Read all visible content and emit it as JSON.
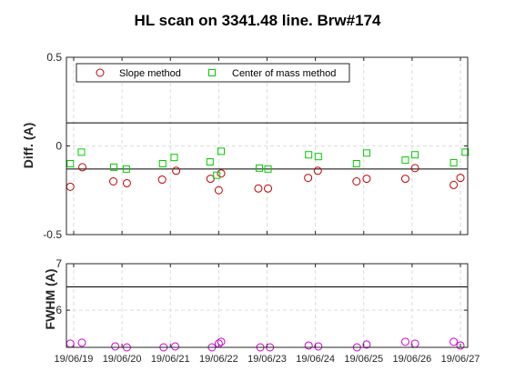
{
  "chart_data": [
    {
      "type": "scatter",
      "title": "HL scan on 3341.48 line. Brw#174",
      "ylabel": "Diff.  (A)",
      "ylim": [
        -0.5,
        0.5
      ],
      "yticks": [
        "-0.5",
        "0",
        "0.5"
      ],
      "xlim": [
        -0.15,
        8.15
      ],
      "xticks": [
        "19/06/19",
        "19/06/20",
        "19/06/21",
        "19/06/22",
        "19/06/23",
        "19/06/24",
        "19/06/25",
        "19/06/26",
        "19/06/27"
      ],
      "grid": true,
      "legend_position": "top",
      "reference_lines": [
        0.13,
        -0.13
      ],
      "series": [
        {
          "name": "Slope method",
          "marker": "circle",
          "color": "#c00000",
          "x": [
            -0.07,
            0.18,
            0.82,
            1.1,
            1.83,
            2.12,
            2.83,
            3.0,
            3.05,
            3.82,
            4.02,
            4.85,
            5.05,
            5.85,
            6.06,
            6.86,
            7.06,
            7.86,
            8.0
          ],
          "y": [
            -0.23,
            -0.12,
            -0.2,
            -0.21,
            -0.19,
            -0.14,
            -0.185,
            -0.25,
            -0.155,
            -0.24,
            -0.24,
            -0.18,
            -0.14,
            -0.2,
            -0.185,
            -0.185,
            -0.125,
            -0.22,
            -0.18
          ]
        },
        {
          "name": "Center of mass method",
          "marker": "square",
          "color": "#00cc00",
          "x": [
            -0.07,
            0.16,
            0.83,
            1.09,
            1.84,
            2.08,
            2.82,
            2.96,
            3.05,
            3.84,
            4.02,
            4.86,
            5.06,
            5.85,
            6.06,
            6.86,
            7.06,
            7.86,
            8.1
          ],
          "y": [
            -0.1,
            -0.035,
            -0.12,
            -0.13,
            -0.1,
            -0.065,
            -0.09,
            -0.165,
            -0.03,
            -0.125,
            -0.13,
            -0.05,
            -0.06,
            -0.1,
            -0.04,
            -0.08,
            -0.05,
            -0.095,
            -0.035
          ]
        }
      ]
    },
    {
      "type": "scatter",
      "ylabel": "FWHM (A)",
      "ylim": [
        5.2,
        7
      ],
      "yticks": [
        "6",
        "7"
      ],
      "xlim": [
        -0.15,
        8.15
      ],
      "xticks": [
        "19/06/19",
        "19/06/20",
        "19/06/21",
        "19/06/22",
        "19/06/23",
        "19/06/24",
        "19/06/25",
        "19/06/26",
        "19/06/27"
      ],
      "grid": true,
      "reference_lines": [
        6.5
      ],
      "series": [
        {
          "marker": "circle",
          "color": "#cc00cc",
          "x": [
            -0.07,
            0.17,
            0.86,
            1.1,
            1.86,
            2.1,
            2.86,
            3.0,
            3.05,
            3.86,
            4.06,
            4.86,
            5.06,
            5.86,
            6.06,
            6.86,
            7.06,
            7.86,
            8.0
          ],
          "y": [
            5.28,
            5.3,
            5.22,
            5.2,
            5.2,
            5.22,
            5.2,
            5.28,
            5.32,
            5.2,
            5.2,
            5.24,
            5.22,
            5.2,
            5.26,
            5.32,
            5.28,
            5.32,
            5.24
          ]
        }
      ]
    }
  ]
}
